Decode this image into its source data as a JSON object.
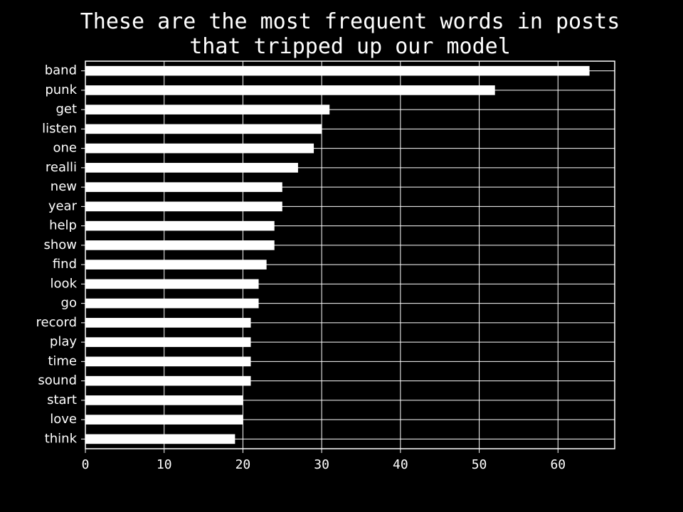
{
  "chart_data": {
    "type": "bar",
    "orientation": "horizontal",
    "title": "These are the most frequent words in posts\nthat tripped up our model",
    "xlabel": "",
    "ylabel": "",
    "categories": [
      "band",
      "punk",
      "get",
      "listen",
      "one",
      "realli",
      "new",
      "year",
      "help",
      "show",
      "find",
      "look",
      "go",
      "record",
      "play",
      "time",
      "sound",
      "start",
      "love",
      "think"
    ],
    "values": [
      64,
      52,
      31,
      30,
      29,
      27,
      25,
      25,
      24,
      24,
      23,
      22,
      22,
      21,
      21,
      21,
      21,
      20,
      20,
      19
    ],
    "xlim": [
      0,
      67.2
    ],
    "xticks": [
      0,
      10,
      20,
      30,
      40,
      50,
      60
    ],
    "grid": true,
    "colors": {
      "background": "#000000",
      "bar": "#ffffff",
      "grid": "#ffffff",
      "text": "#ffffff"
    }
  }
}
